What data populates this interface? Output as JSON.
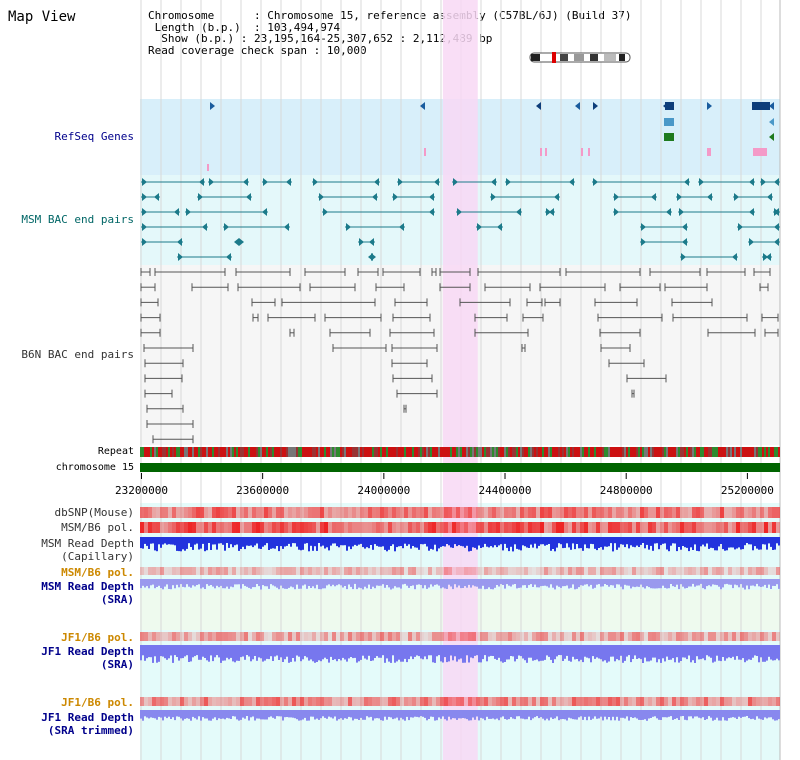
{
  "header": {
    "title": "Map View"
  },
  "info": {
    "chromosome_label": "Chromosome",
    "chromosome_value": "Chromosome 15, reference assembly (C57BL/6J) (Build 37)",
    "length_label": "Length (b.p.)",
    "length_value": "103,494,974",
    "show_label": "Show (b.p.)",
    "show_value": "23,195,164-25,307,652 : 2,112,489 bp",
    "coverage_label": "Read coverage check span",
    "coverage_value": "10,000"
  },
  "tracks": {
    "refseq": "RefSeq Genes",
    "msm_bac": "MSM BAC end pairs",
    "b6n_bac": "B6N BAC end pairs",
    "repeat": "Repeat",
    "chromosome": "chromosome 15",
    "dbsnp": "dbSNP(Mouse)",
    "msm_b6_pol_1": "MSM/B6 pol.",
    "msm_read_depth_cap_1": "MSM Read Depth",
    "msm_read_depth_cap_2": "(Capillary)",
    "msm_b6_pol_2": "MSM/B6 pol.",
    "msm_read_depth_sra_1": "MSM Read Depth",
    "msm_read_depth_sra_2": "(SRA)",
    "jf1_b6_pol_1": "JF1/B6 pol.",
    "jf1_read_depth_sra_1": "JF1 Read Depth",
    "jf1_read_depth_sra_2": "(SRA)",
    "jf1_b6_pol_2": "JF1/B6 pol.",
    "jf1_read_depth_trim_1": "JF1 Read Depth",
    "jf1_read_depth_trim_2": "(SRA trimmed)"
  },
  "axis": {
    "ticks": [
      {
        "value": 23200000,
        "label": "23200000"
      },
      {
        "value": 23600000,
        "label": "23600000"
      },
      {
        "value": 24000000,
        "label": "24000000"
      },
      {
        "value": 24400000,
        "label": "24400000"
      },
      {
        "value": 24800000,
        "label": "24800000"
      },
      {
        "value": 25200000,
        "label": "25200000"
      }
    ],
    "start": 23195164,
    "end": 25307652,
    "highlight_start": 24195000,
    "highlight_end": 24310000
  },
  "colors": {
    "label_blue": "#00008b",
    "label_teal": "#006666",
    "label_gray": "#333333",
    "label_orange": "#cc8800",
    "refseq_bg": "#d8effa",
    "msm_bac_bg": "#e4f8fa",
    "b6n_bg": "#f6f6f6",
    "chromosome_bar": "#006400",
    "highlight": "#f8d8f4",
    "read_depth_blue": "#2233dd",
    "read_depth_light": "#8888ee",
    "pol_red": "#ee3333"
  }
}
